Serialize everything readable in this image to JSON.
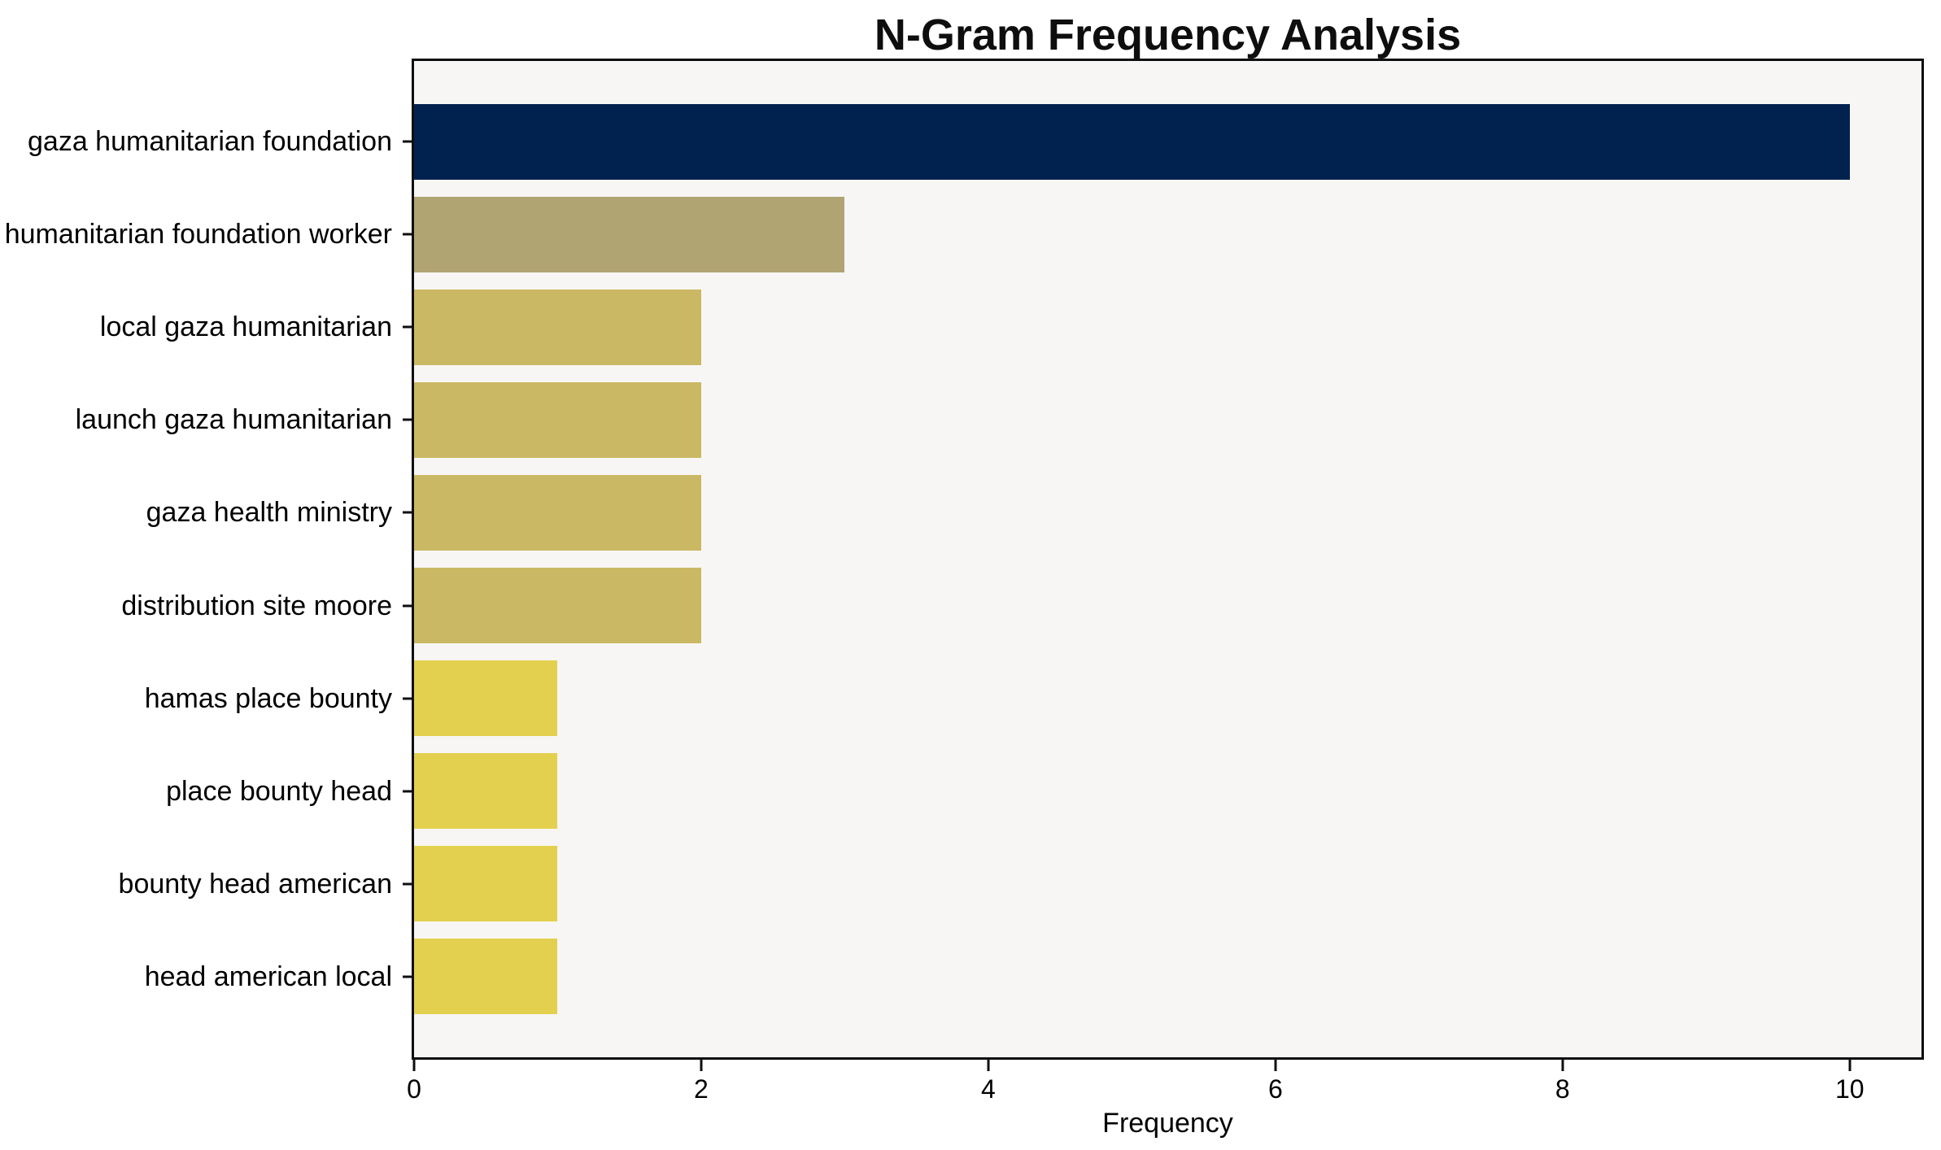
{
  "chart_data": {
    "type": "bar",
    "orientation": "horizontal",
    "title": "N-Gram Frequency Analysis",
    "xlabel": "Frequency",
    "ylabel": "",
    "categories": [
      "gaza humanitarian foundation",
      "humanitarian foundation worker",
      "local gaza humanitarian",
      "launch gaza humanitarian",
      "gaza health ministry",
      "distribution site moore",
      "hamas place bounty",
      "place bounty head",
      "bounty head american",
      "head american local"
    ],
    "values": [
      10,
      3,
      2,
      2,
      2,
      2,
      1,
      1,
      1,
      1
    ],
    "bar_colors": [
      "#01224e",
      "#b0a472",
      "#cab864",
      "#cab864",
      "#cab864",
      "#cab864",
      "#e3d04f",
      "#e3d04f",
      "#e3d04f",
      "#e3d04f"
    ],
    "x_ticks": [
      0,
      2,
      4,
      6,
      8,
      10
    ],
    "xlim": [
      0,
      10.5
    ],
    "grid": false,
    "legend": null,
    "plot_background": "#f7f6f4",
    "figure_background": "#ffffff",
    "spine_color": "#0f0f0f"
  }
}
